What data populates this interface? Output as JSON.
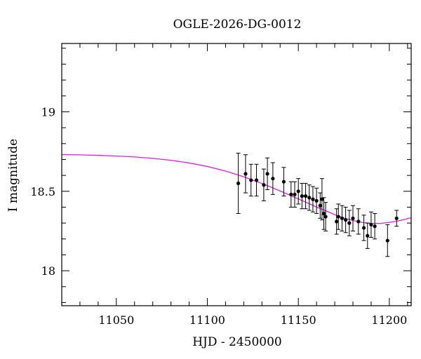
{
  "chart_data": {
    "type": "scatter",
    "title": "OGLE-2026-DG-0012",
    "xlabel": "HJD - 2450000",
    "ylabel": "I magnitude",
    "xlim": [
      11020,
      11212
    ],
    "ylim": [
      19.43,
      17.78
    ],
    "y_inverted": true,
    "x_major_ticks": [
      11050,
      11100,
      11150,
      11200
    ],
    "x_minor_step": 10,
    "y_major_ticks": [
      18,
      18.5,
      19
    ],
    "y_minor_step": 0.1,
    "tick_labels_x": [
      "11050",
      "11100",
      "11150",
      "11200"
    ],
    "tick_labels_y": [
      "18",
      "18.5",
      "19"
    ],
    "grid": false,
    "legend": "none",
    "colors": {
      "points": "#000000",
      "model": "#e01ee0"
    },
    "series": [
      {
        "kind": "points_with_errorbars",
        "points": [
          {
            "x": 11117,
            "y": 18.55,
            "err": 0.19
          },
          {
            "x": 11121,
            "y": 18.61,
            "err": 0.12
          },
          {
            "x": 11124,
            "y": 18.57,
            "err": 0.1
          },
          {
            "x": 11127,
            "y": 18.57,
            "err": 0.1
          },
          {
            "x": 11131,
            "y": 18.54,
            "err": 0.1
          },
          {
            "x": 11133,
            "y": 18.61,
            "err": 0.1
          },
          {
            "x": 11136,
            "y": 18.58,
            "err": 0.1
          },
          {
            "x": 11142,
            "y": 18.56,
            "err": 0.09
          },
          {
            "x": 11146,
            "y": 18.48,
            "err": 0.08
          },
          {
            "x": 11148,
            "y": 18.48,
            "err": 0.08
          },
          {
            "x": 11150,
            "y": 18.5,
            "err": 0.08
          },
          {
            "x": 11152,
            "y": 18.47,
            "err": 0.08
          },
          {
            "x": 11154,
            "y": 18.47,
            "err": 0.08
          },
          {
            "x": 11156,
            "y": 18.46,
            "err": 0.08
          },
          {
            "x": 11158,
            "y": 18.45,
            "err": 0.08
          },
          {
            "x": 11160,
            "y": 18.44,
            "err": 0.08
          },
          {
            "x": 11162,
            "y": 18.41,
            "err": 0.08
          },
          {
            "x": 11163,
            "y": 18.45,
            "err": 0.13
          },
          {
            "x": 11164,
            "y": 18.36,
            "err": 0.1
          },
          {
            "x": 11165,
            "y": 18.34,
            "err": 0.09
          },
          {
            "x": 11171,
            "y": 18.31,
            "err": 0.08
          },
          {
            "x": 11172,
            "y": 18.34,
            "err": 0.08
          },
          {
            "x": 11174,
            "y": 18.33,
            "err": 0.08
          },
          {
            "x": 11176,
            "y": 18.32,
            "err": 0.08
          },
          {
            "x": 11178,
            "y": 18.3,
            "err": 0.08
          },
          {
            "x": 11180,
            "y": 18.33,
            "err": 0.08
          },
          {
            "x": 11183,
            "y": 18.31,
            "err": 0.08
          },
          {
            "x": 11186,
            "y": 18.27,
            "err": 0.08
          },
          {
            "x": 11188,
            "y": 18.22,
            "err": 0.08
          },
          {
            "x": 11190,
            "y": 18.29,
            "err": 0.08
          },
          {
            "x": 11192,
            "y": 18.28,
            "err": 0.08
          },
          {
            "x": 11199,
            "y": 18.19,
            "err": 0.1
          },
          {
            "x": 11204,
            "y": 18.33,
            "err": 0.05
          }
        ]
      },
      {
        "kind": "model_curve",
        "x": [
          11020,
          11030,
          11040,
          11050,
          11060,
          11070,
          11080,
          11090,
          11100,
          11110,
          11120,
          11130,
          11140,
          11150,
          11160,
          11170,
          11175,
          11180,
          11185,
          11190,
          11195,
          11200,
          11205,
          11212
        ],
        "y": [
          18.731,
          18.729,
          18.726,
          18.722,
          18.716,
          18.707,
          18.695,
          18.678,
          18.656,
          18.627,
          18.591,
          18.549,
          18.502,
          18.452,
          18.401,
          18.353,
          18.332,
          18.316,
          18.304,
          18.298,
          18.298,
          18.304,
          18.314,
          18.333
        ]
      }
    ]
  }
}
